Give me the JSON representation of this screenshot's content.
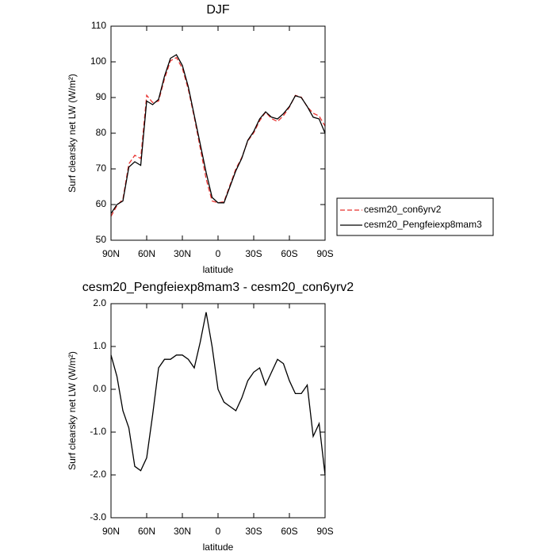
{
  "chart_data": [
    {
      "type": "line",
      "title": "DJF",
      "xlabel": "latitude",
      "ylabel": "Surf clearsky net LW (W/m²)",
      "x": [
        90,
        85,
        80,
        75,
        70,
        65,
        60,
        55,
        50,
        45,
        40,
        35,
        30,
        25,
        20,
        15,
        10,
        5,
        0,
        -5,
        -10,
        -15,
        -20,
        -25,
        -30,
        -35,
        -40,
        -45,
        -50,
        -55,
        -60,
        -65,
        -70,
        -75,
        -80,
        -85,
        -90
      ],
      "series": [
        {
          "name": "cesm20_con6yrv2",
          "color": "#e8322f",
          "dashed": true,
          "values": [
            56.7,
            59.7,
            61.5,
            71.4,
            73.8,
            72.9,
            90.6,
            88.6,
            89.0,
            95.3,
            100.3,
            101.2,
            98.2,
            92.3,
            84.5,
            75.9,
            67.2,
            61.0,
            60.5,
            60.8,
            65.4,
            70.0,
            73.2,
            77.8,
            80.1,
            83.5,
            85.9,
            84.1,
            83.3,
            84.9,
            87.3,
            90.6,
            90.1,
            87.4,
            85.6,
            84.8,
            82.0
          ]
        },
        {
          "name": "cesm20_Pengfeiexp8mam3",
          "color": "#000000",
          "dashed": false,
          "values": [
            57.5,
            60,
            61,
            70.5,
            72,
            71,
            89,
            88,
            89.5,
            96,
            101,
            102,
            99,
            93,
            85,
            77,
            69,
            62,
            60.5,
            60.5,
            65,
            69.5,
            73,
            78,
            80.5,
            84,
            86,
            84.5,
            84,
            85.5,
            87.5,
            90.5,
            90,
            87.5,
            84.5,
            84,
            80
          ]
        }
      ],
      "xlim": [
        90,
        -90
      ],
      "xticks": [
        {
          "value": 90,
          "label": "90N"
        },
        {
          "value": 60,
          "label": "60N"
        },
        {
          "value": 30,
          "label": "30N"
        },
        0,
        {
          "value": -30,
          "label": "30S"
        },
        {
          "value": -60,
          "label": "60S"
        },
        {
          "value": -90,
          "label": "90S"
        }
      ],
      "ylim": [
        50,
        110
      ],
      "yticks": [
        50,
        60,
        70,
        80,
        90,
        100,
        110
      ],
      "legend": "right"
    },
    {
      "type": "line",
      "title": "cesm20_Pengfeiexp8mam3 - cesm20_con6yrv2",
      "xlabel": "latitude",
      "ylabel": "Surf clearsky net LW (W/m²)",
      "x": [
        90,
        85,
        80,
        75,
        70,
        65,
        60,
        55,
        50,
        45,
        40,
        35,
        30,
        25,
        20,
        15,
        10,
        5,
        0,
        -5,
        -10,
        -15,
        -20,
        -25,
        -30,
        -35,
        -40,
        -45,
        -50,
        -55,
        -60,
        -65,
        -70,
        -75,
        -80,
        -85,
        -90
      ],
      "series": [
        {
          "color": "#000000",
          "dashed": false,
          "values": [
            0.8,
            0.3,
            -0.5,
            -0.9,
            -1.8,
            -1.9,
            -1.6,
            -0.6,
            0.5,
            0.7,
            0.7,
            0.8,
            0.8,
            0.7,
            0.5,
            1.1,
            1.8,
            1.0,
            0.0,
            -0.3,
            -0.4,
            -0.5,
            -0.2,
            0.2,
            0.4,
            0.5,
            0.1,
            0.4,
            0.7,
            0.6,
            0.2,
            -0.1,
            -0.1,
            0.1,
            -1.1,
            -0.8,
            -2.0
          ]
        }
      ],
      "xlim": [
        90,
        -90
      ],
      "xticks": [
        {
          "value": 90,
          "label": "90N"
        },
        {
          "value": 60,
          "label": "60N"
        },
        {
          "value": 30,
          "label": "30N"
        },
        0,
        {
          "value": -30,
          "label": "30S"
        },
        {
          "value": -60,
          "label": "60S"
        },
        {
          "value": -90,
          "label": "90S"
        }
      ],
      "ylim": [
        -3,
        2
      ],
      "yticks": [
        {
          "value": -3,
          "label": "-3.0"
        },
        {
          "value": -2,
          "label": "-2.0"
        },
        {
          "value": -1,
          "label": "-1.0"
        },
        {
          "value": 0,
          "label": "0.0"
        },
        {
          "value": 1,
          "label": "1.0"
        },
        {
          "value": 2,
          "label": "2.0"
        }
      ]
    }
  ]
}
